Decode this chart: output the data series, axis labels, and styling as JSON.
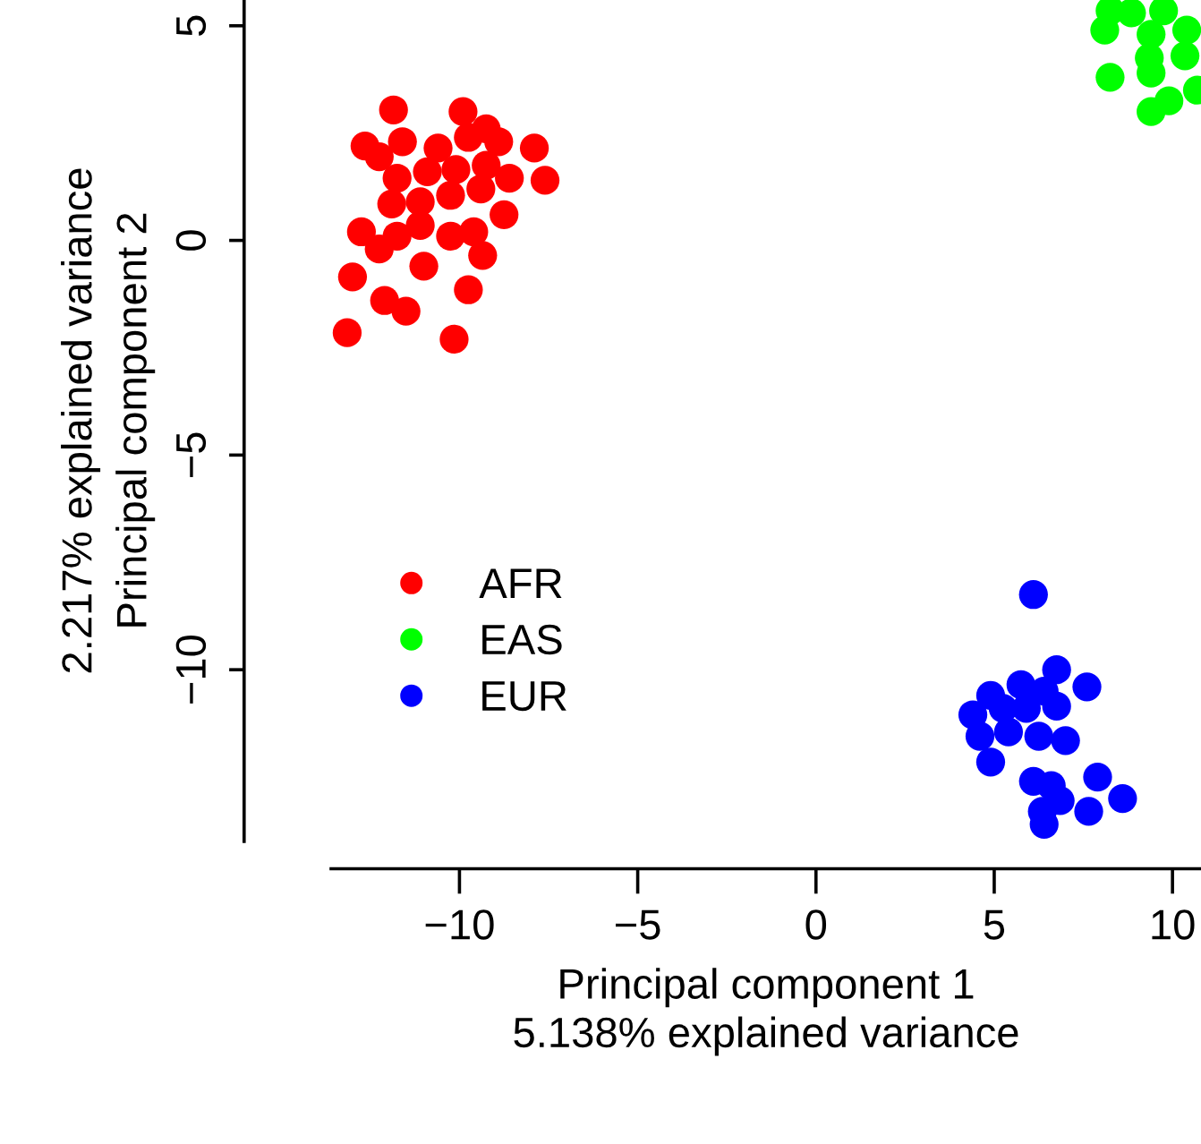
{
  "chart_data": {
    "type": "scatter",
    "xlabel": "Principal component 1\n5.138% explained variance",
    "ylabel": "2.217% explained variance\nPrincipal component 2",
    "xlim": [
      -13.6,
      10.8
    ],
    "ylim": [
      -14.0,
      5.6
    ],
    "xticks": [
      {
        "value": -10,
        "label": "−10"
      },
      {
        "value": -5,
        "label": "−5"
      },
      0,
      5,
      10
    ],
    "yticks": [
      {
        "value": -10,
        "label": "−10"
      },
      {
        "value": -5,
        "label": "−5"
      },
      0,
      5
    ],
    "grid": false,
    "legend": "bottom left",
    "marker": "circle",
    "series": [
      {
        "name": "AFR",
        "color": "#ff0000",
        "x": [
          -11.85,
          -9.9,
          -9.25,
          -12.65,
          -12.25,
          -11.6,
          -10.6,
          -9.75,
          -8.9,
          -7.9,
          -7.6,
          -11.75,
          -10.9,
          -10.1,
          -9.25,
          -8.6,
          -11.9,
          -11.1,
          -10.25,
          -9.4,
          -8.75,
          -12.75,
          -12.25,
          -11.75,
          -11.1,
          -10.25,
          -9.6,
          -9.35,
          -13.0,
          -11.0,
          -12.1,
          -11.5,
          -9.75,
          -13.15,
          -10.15
        ],
        "values": [
          3.04,
          3.0,
          2.6,
          2.2,
          1.95,
          2.3,
          2.15,
          2.4,
          2.3,
          2.15,
          1.4,
          1.45,
          1.6,
          1.65,
          1.75,
          1.45,
          0.85,
          0.9,
          1.05,
          1.2,
          0.6,
          0.2,
          -0.2,
          0.1,
          0.35,
          0.1,
          0.2,
          -0.35,
          -0.85,
          -0.6,
          -1.4,
          -1.65,
          -1.15,
          -2.15,
          -2.3
        ]
      },
      {
        "name": "EAS",
        "color": "#00ff00",
        "x": [
          8.25,
          8.85,
          8.1,
          9.75,
          9.4,
          10.4,
          9.35,
          10.35,
          8.25,
          9.4,
          9.9,
          9.4,
          10.7
        ],
        "values": [
          5.35,
          5.3,
          4.9,
          5.35,
          4.8,
          4.9,
          4.25,
          4.3,
          3.8,
          3.9,
          3.25,
          3.0,
          3.5
        ]
      },
      {
        "name": "EUR",
        "color": "#0000ff",
        "x": [
          6.1,
          6.75,
          7.6,
          5.75,
          4.9,
          6.4,
          4.4,
          5.25,
          5.9,
          6.75,
          4.6,
          5.4,
          6.25,
          7.0,
          4.9,
          6.1,
          6.6,
          7.9,
          6.85,
          6.35,
          7.65,
          8.6,
          6.4
        ],
        "values": [
          -8.25,
          -10.0,
          -10.4,
          -10.35,
          -10.6,
          -10.5,
          -11.05,
          -10.9,
          -10.9,
          -10.85,
          -11.55,
          -11.45,
          -11.55,
          -11.65,
          -12.15,
          -12.6,
          -12.7,
          -12.5,
          -13.05,
          -13.3,
          -13.3,
          -13.0,
          -13.6
        ]
      }
    ]
  }
}
